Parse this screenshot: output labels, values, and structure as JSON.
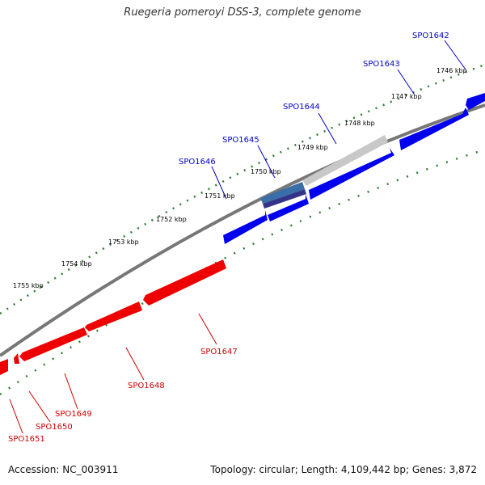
{
  "title": "Ruegeria pomeroyi DSS-3, complete genome",
  "footer": {
    "accession": "Accession: NC_003911",
    "summary": "Topology: circular; Length: 4,109,442 bp; Genes: 3,872"
  },
  "colors": {
    "forward": "#0000ee",
    "forward_light": "#5566ff",
    "reverse": "#ee0000",
    "reverse_light": "#ff6666",
    "highlight_gray": "#c8c8c8",
    "highlight_blue": "#3a6ea8",
    "backbone": "#777777",
    "ticks": "#2e7d32",
    "forward_label": "#0000cc",
    "reverse_label": "#cc0000"
  },
  "scale": {
    "unit": "kbp",
    "tick_labels": [
      "1755 kbp",
      "1754 kbp",
      "1753 kbp",
      "1752 kbp",
      "1751 kbp",
      "1750 kbp",
      "1749 kbp",
      "1748 kbp",
      "1747 kbp",
      "1746 kbp"
    ]
  },
  "genes": {
    "forward_labels": [
      "SPO1646",
      "SPO1645",
      "SPO1644",
      "SPO1643",
      "SPO1642"
    ],
    "reverse_labels": [
      "SPO1647",
      "SPO1648",
      "SPO1649",
      "SPO1650",
      "SPO1651"
    ]
  }
}
